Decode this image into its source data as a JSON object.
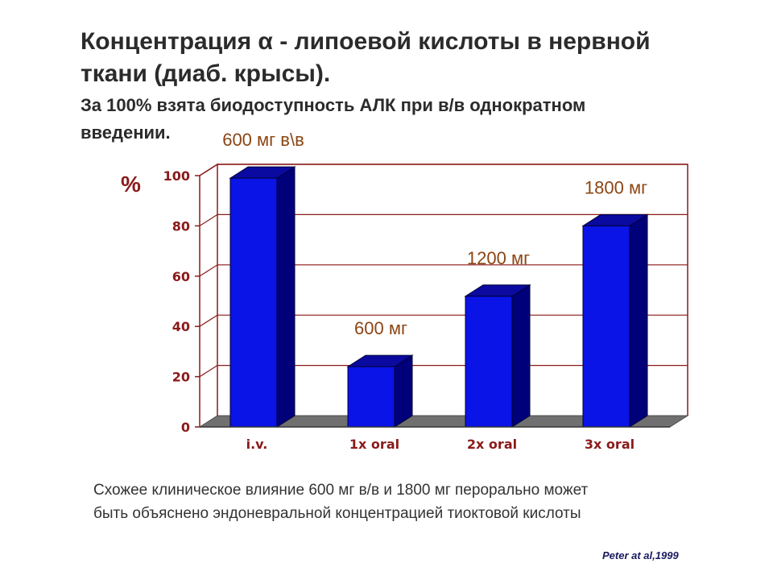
{
  "slide": {
    "title_line1": "Концентрация α - липоевой кислоты в нервной",
    "title_line2": "ткани (диаб. крысы).",
    "subtitle_line1": "За 100% взята  биодоступность АЛК при в/в однократном",
    "subtitle_line2": "введении.",
    "caption_line1": "Схожее клиническое влияние 600 мг в/в и 1800 мг перорально может",
    "caption_line2": "быть объяснено эндоневральной концентрацией тиоктовой кислоты",
    "source": "Peter at al,1999"
  },
  "chart_data": {
    "type": "bar",
    "style": "3d",
    "categories": [
      "i.v.",
      "1x oral",
      "2x oral",
      "3x oral"
    ],
    "values": [
      99,
      24,
      52,
      80
    ],
    "bar_labels": [
      "600 мг в\\в",
      "600 мг",
      "1200 мг",
      "1800 мг"
    ],
    "ylabel": "%",
    "ylim": [
      0,
      100
    ],
    "yticks": [
      0,
      20,
      40,
      60,
      80,
      100
    ],
    "grid": true,
    "legend": "none",
    "colors": {
      "bar_front": "#0a14e6",
      "bar_side": "#00007a",
      "bar_top": "#0a0aa0",
      "grid": "#8b1a1a",
      "tick_label": "#8b1a1a",
      "ylabel": "#8b1a1a",
      "bar_label": "#8b4513",
      "floor": "#707070"
    }
  }
}
